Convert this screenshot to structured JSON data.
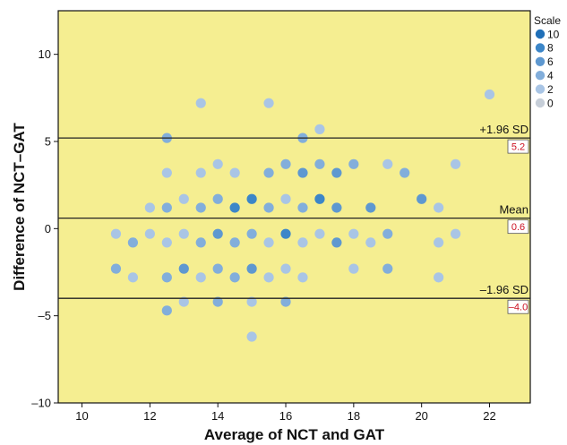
{
  "chart_data": {
    "type": "scatter",
    "xlabel": "Average of NCT and GAT",
    "ylabel": "Difference of NCT–GAT",
    "xlim": [
      9.3,
      23.2
    ],
    "ylim": [
      -10,
      12.5
    ],
    "xticks": [
      10,
      12,
      14,
      16,
      18,
      20,
      22
    ],
    "yticks": [
      -10,
      -5,
      0,
      5,
      10
    ],
    "ytick_labels": [
      "–10",
      "–5",
      "0",
      "5",
      "10"
    ],
    "colors": {
      "plot_background": "#f5ee91",
      "border": "#111111"
    },
    "reference_lines": [
      {
        "name": "+1.96 SD",
        "value": 5.2,
        "value_label": "5.2"
      },
      {
        "name": "Mean",
        "value": 0.6,
        "value_label": "0.6"
      },
      {
        "name": "–1.96 SD",
        "value": -4.0,
        "value_label": "–4.0"
      }
    ],
    "legend": {
      "title": "Scale",
      "position": "right",
      "entries": [
        {
          "label": "10",
          "color": "#2170b8"
        },
        {
          "label": "8",
          "color": "#3c86c8"
        },
        {
          "label": "6",
          "color": "#5e98d0"
        },
        {
          "label": "4",
          "color": "#82aedb"
        },
        {
          "label": "2",
          "color": "#a9c5e5"
        },
        {
          "label": "0",
          "color": "#c6ced8"
        }
      ]
    },
    "points": [
      {
        "x": 22.0,
        "y": 7.7,
        "scale": 2
      },
      {
        "x": 13.5,
        "y": 7.2,
        "scale": 2
      },
      {
        "x": 15.5,
        "y": 7.2,
        "scale": 2
      },
      {
        "x": 17.0,
        "y": 5.7,
        "scale": 2
      },
      {
        "x": 12.5,
        "y": 5.2,
        "scale": 4
      },
      {
        "x": 16.5,
        "y": 5.2,
        "scale": 4
      },
      {
        "x": 14.0,
        "y": 3.7,
        "scale": 2
      },
      {
        "x": 16.0,
        "y": 3.7,
        "scale": 4
      },
      {
        "x": 17.0,
        "y": 3.7,
        "scale": 4
      },
      {
        "x": 18.0,
        "y": 3.7,
        "scale": 4
      },
      {
        "x": 19.0,
        "y": 3.7,
        "scale": 2
      },
      {
        "x": 21.0,
        "y": 3.7,
        "scale": 2
      },
      {
        "x": 12.5,
        "y": 3.2,
        "scale": 2
      },
      {
        "x": 13.5,
        "y": 3.2,
        "scale": 2
      },
      {
        "x": 14.5,
        "y": 3.2,
        "scale": 2
      },
      {
        "x": 15.5,
        "y": 3.2,
        "scale": 4
      },
      {
        "x": 16.5,
        "y": 3.2,
        "scale": 6
      },
      {
        "x": 17.5,
        "y": 3.2,
        "scale": 6
      },
      {
        "x": 19.5,
        "y": 3.2,
        "scale": 4
      },
      {
        "x": 13.0,
        "y": 1.7,
        "scale": 2
      },
      {
        "x": 14.0,
        "y": 1.7,
        "scale": 4
      },
      {
        "x": 15.0,
        "y": 1.7,
        "scale": 8
      },
      {
        "x": 16.0,
        "y": 1.7,
        "scale": 2
      },
      {
        "x": 17.0,
        "y": 1.7,
        "scale": 8
      },
      {
        "x": 20.0,
        "y": 1.7,
        "scale": 6
      },
      {
        "x": 12.0,
        "y": 1.2,
        "scale": 2
      },
      {
        "x": 12.5,
        "y": 1.2,
        "scale": 4
      },
      {
        "x": 13.5,
        "y": 1.2,
        "scale": 4
      },
      {
        "x": 14.5,
        "y": 1.2,
        "scale": 8
      },
      {
        "x": 15.5,
        "y": 1.2,
        "scale": 4
      },
      {
        "x": 16.5,
        "y": 1.2,
        "scale": 4
      },
      {
        "x": 17.5,
        "y": 1.2,
        "scale": 6
      },
      {
        "x": 18.5,
        "y": 1.2,
        "scale": 6
      },
      {
        "x": 20.5,
        "y": 1.2,
        "scale": 2
      },
      {
        "x": 11.0,
        "y": -0.3,
        "scale": 2
      },
      {
        "x": 12.0,
        "y": -0.3,
        "scale": 2
      },
      {
        "x": 13.0,
        "y": -0.3,
        "scale": 2
      },
      {
        "x": 14.0,
        "y": -0.3,
        "scale": 6
      },
      {
        "x": 15.0,
        "y": -0.3,
        "scale": 4
      },
      {
        "x": 16.0,
        "y": -0.3,
        "scale": 8
      },
      {
        "x": 17.0,
        "y": -0.3,
        "scale": 2
      },
      {
        "x": 18.0,
        "y": -0.3,
        "scale": 2
      },
      {
        "x": 19.0,
        "y": -0.3,
        "scale": 4
      },
      {
        "x": 21.0,
        "y": -0.3,
        "scale": 2
      },
      {
        "x": 11.5,
        "y": -0.8,
        "scale": 4
      },
      {
        "x": 12.5,
        "y": -0.8,
        "scale": 2
      },
      {
        "x": 13.5,
        "y": -0.8,
        "scale": 4
      },
      {
        "x": 14.5,
        "y": -0.8,
        "scale": 4
      },
      {
        "x": 15.5,
        "y": -0.8,
        "scale": 2
      },
      {
        "x": 16.5,
        "y": -0.8,
        "scale": 2
      },
      {
        "x": 17.5,
        "y": -0.8,
        "scale": 6
      },
      {
        "x": 18.5,
        "y": -0.8,
        "scale": 2
      },
      {
        "x": 20.5,
        "y": -0.8,
        "scale": 2
      },
      {
        "x": 11.0,
        "y": -2.3,
        "scale": 4
      },
      {
        "x": 13.0,
        "y": -2.3,
        "scale": 6
      },
      {
        "x": 14.0,
        "y": -2.3,
        "scale": 4
      },
      {
        "x": 15.0,
        "y": -2.3,
        "scale": 6
      },
      {
        "x": 16.0,
        "y": -2.3,
        "scale": 2
      },
      {
        "x": 18.0,
        "y": -2.3,
        "scale": 2
      },
      {
        "x": 19.0,
        "y": -2.3,
        "scale": 4
      },
      {
        "x": 11.5,
        "y": -2.8,
        "scale": 2
      },
      {
        "x": 12.5,
        "y": -2.8,
        "scale": 4
      },
      {
        "x": 13.5,
        "y": -2.8,
        "scale": 2
      },
      {
        "x": 14.5,
        "y": -2.8,
        "scale": 4
      },
      {
        "x": 15.5,
        "y": -2.8,
        "scale": 2
      },
      {
        "x": 16.5,
        "y": -2.8,
        "scale": 2
      },
      {
        "x": 20.5,
        "y": -2.8,
        "scale": 2
      },
      {
        "x": 13.0,
        "y": -4.2,
        "scale": 2
      },
      {
        "x": 14.0,
        "y": -4.2,
        "scale": 4
      },
      {
        "x": 15.0,
        "y": -4.2,
        "scale": 2
      },
      {
        "x": 16.0,
        "y": -4.2,
        "scale": 4
      },
      {
        "x": 12.5,
        "y": -4.7,
        "scale": 4
      },
      {
        "x": 15.0,
        "y": -6.2,
        "scale": 2
      }
    ]
  }
}
